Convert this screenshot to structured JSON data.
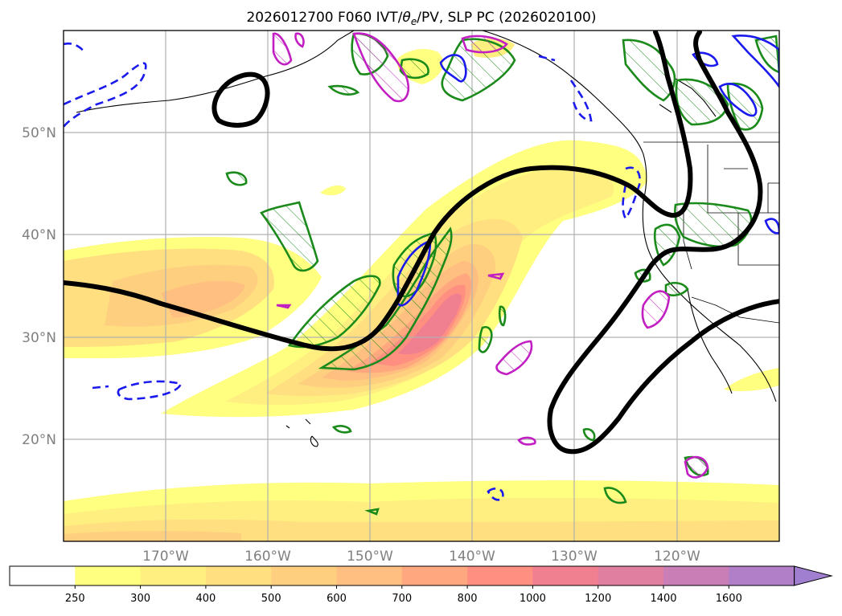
{
  "title": "2026012700 F060 IVT/θe/PV, SLP PC (2026020100)",
  "title_parts": {
    "prefix": "2026012700 F060 IVT/",
    "theta": "θ",
    "sub": "e",
    "suffix": "/PV, SLP PC (2026020100)"
  },
  "map": {
    "lat_labels": [
      "50°N",
      "40°N",
      "30°N",
      "20°N"
    ],
    "lon_labels": [
      "170°W",
      "160°W",
      "150°W",
      "140°W",
      "130°W",
      "120°W"
    ],
    "lat_range": [
      10,
      60
    ],
    "lon_range": [
      -180,
      -110
    ],
    "layers": [
      "IVT fill",
      "theta-e contours (blue)",
      "PV contours (green/magenta, hatched)",
      "SLP PC (black)"
    ]
  },
  "colorbar": {
    "levels": [
      "250",
      "300",
      "400",
      "500",
      "600",
      "700",
      "800",
      "1000",
      "1200",
      "1400",
      "1600"
    ],
    "colors": [
      "#ffff80",
      "#ffef80",
      "#ffdf80",
      "#ffcf80",
      "#ffbf80",
      "#ffa880",
      "#ff8f80",
      "#f07f90",
      "#e07fa0",
      "#c97fb5",
      "#b07fc8",
      "#a07fd0"
    ],
    "extend": "max"
  }
}
